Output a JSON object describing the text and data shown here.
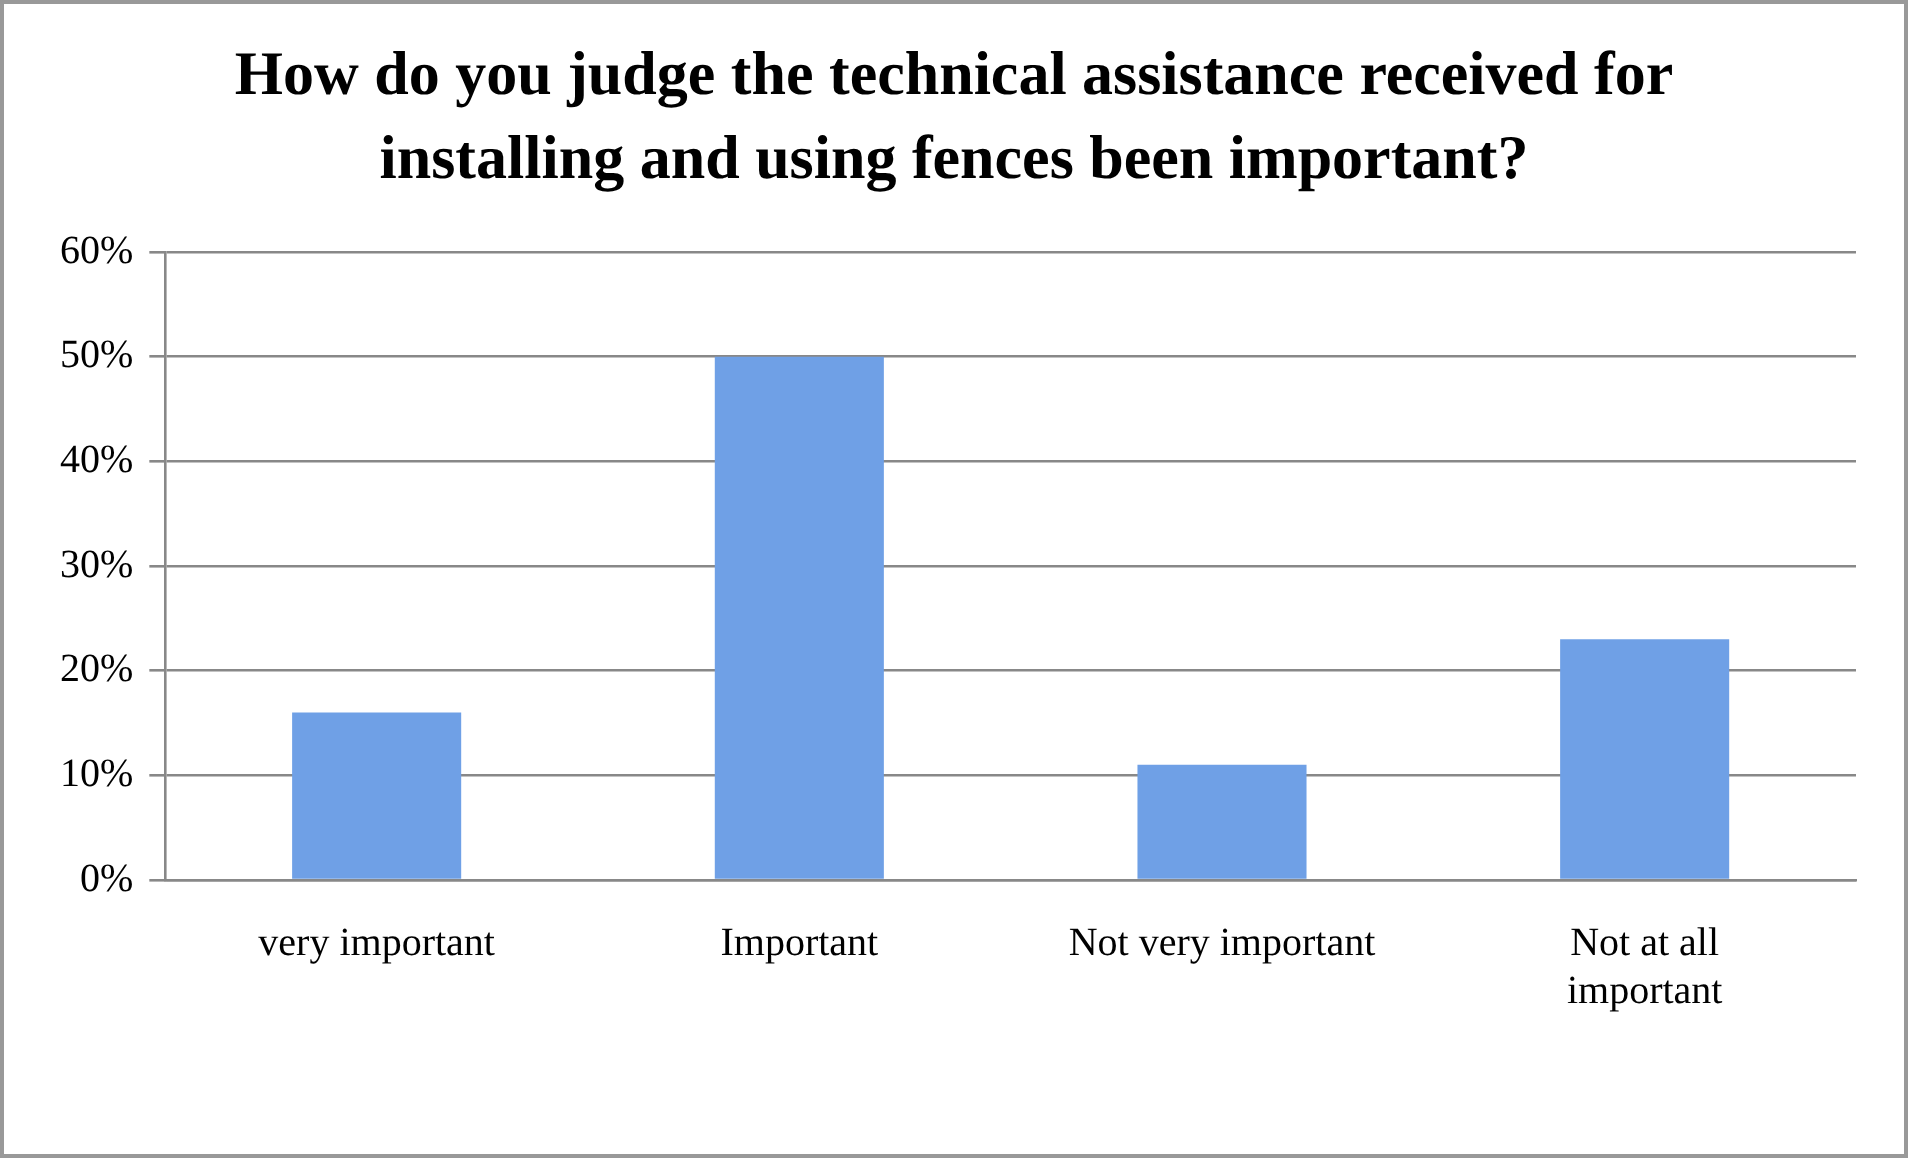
{
  "chart_data": {
    "type": "bar",
    "title": "How do you judge the technical assistance received for installing and using fences been important?",
    "categories": [
      "very important",
      "Important",
      "Not very important",
      "Not at all important"
    ],
    "values": [
      16,
      50,
      11,
      23
    ],
    "color": "#6fa0e6",
    "ylim": [
      0,
      60
    ],
    "yticks": [
      {
        "value": 0,
        "label": "0%"
      },
      {
        "value": 10,
        "label": "10%"
      },
      {
        "value": 20,
        "label": "20%"
      },
      {
        "value": 30,
        "label": "30%"
      },
      {
        "value": 40,
        "label": "40%"
      },
      {
        "value": 50,
        "label": "50%"
      },
      {
        "value": 60,
        "label": "60%"
      }
    ],
    "grid": "y",
    "legend": false
  }
}
